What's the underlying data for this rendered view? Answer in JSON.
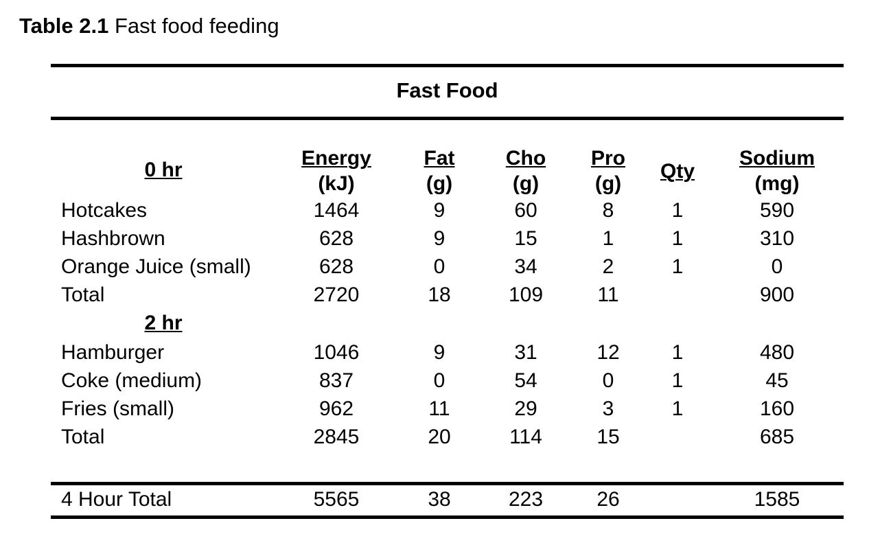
{
  "caption": {
    "number": "Table 2.1",
    "title": "Fast food feeding"
  },
  "group_title": "Fast Food",
  "columns": [
    {
      "name": "Energy",
      "unit": "(kJ)"
    },
    {
      "name": "Fat",
      "unit": "(g)"
    },
    {
      "name": "Cho",
      "unit": "(g)"
    },
    {
      "name": "Pro",
      "unit": "(g)"
    },
    {
      "name": "Qty",
      "unit": ""
    },
    {
      "name": "Sodium",
      "unit": "(mg)"
    }
  ],
  "sections": [
    {
      "label": "0 hr",
      "rows": [
        {
          "item": "Hotcakes",
          "energy": "1464",
          "fat": "9",
          "cho": "60",
          "pro": "8",
          "qty": "1",
          "sodium": "590"
        },
        {
          "item": "Hashbrown",
          "energy": "628",
          "fat": "9",
          "cho": "15",
          "pro": "1",
          "qty": "1",
          "sodium": "310"
        },
        {
          "item": "Orange Juice (small)",
          "energy": "628",
          "fat": "0",
          "cho": "34",
          "pro": "2",
          "qty": "1",
          "sodium": "0"
        },
        {
          "item": "Total",
          "energy": "2720",
          "fat": "18",
          "cho": "109",
          "pro": "11",
          "qty": "",
          "sodium": "900"
        }
      ]
    },
    {
      "label": "2 hr",
      "rows": [
        {
          "item": "Hamburger",
          "energy": "1046",
          "fat": "9",
          "cho": "31",
          "pro": "12",
          "qty": "1",
          "sodium": "480"
        },
        {
          "item": "Coke (medium)",
          "energy": "837",
          "fat": "0",
          "cho": "54",
          "pro": "0",
          "qty": "1",
          "sodium": "45"
        },
        {
          "item": "Fries (small)",
          "energy": "962",
          "fat": "11",
          "cho": "29",
          "pro": "3",
          "qty": "1",
          "sodium": "160"
        },
        {
          "item": "Total",
          "energy": "2845",
          "fat": "20",
          "cho": "114",
          "pro": "15",
          "qty": "",
          "sodium": "685"
        }
      ]
    }
  ],
  "grand_total": {
    "item": "4 Hour Total",
    "energy": "5565",
    "fat": "38",
    "cho": "223",
    "pro": "26",
    "qty": "",
    "sodium": "1585"
  }
}
